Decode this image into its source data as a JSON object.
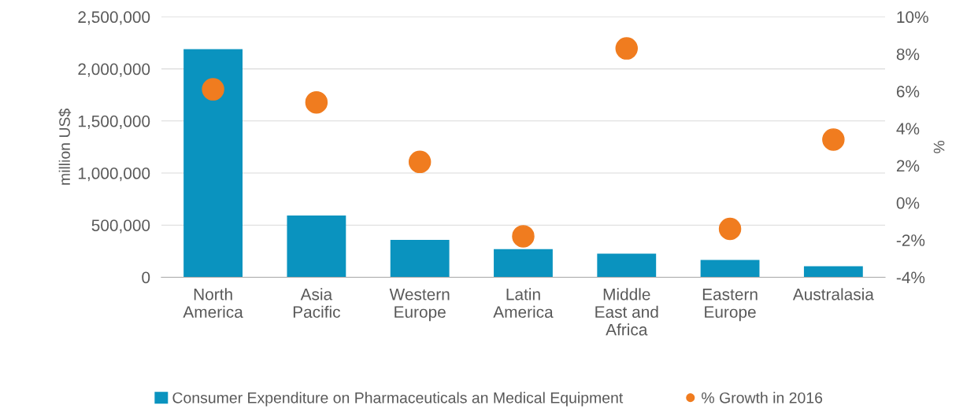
{
  "chart_data": {
    "type": "bar",
    "ylabel": "million US$",
    "y2label": "%",
    "categories": [
      "North\nAmerica",
      "Asia\nPacific",
      "Western\nEurope",
      "Latin\nAmerica",
      "Middle\nEast and\nAfrica",
      "Eastern\nEurope",
      "Australasia"
    ],
    "series": [
      {
        "name": "Consumer Expenditure on Pharmaceuticals an Medical Equipment",
        "color": "#0a93bf",
        "values": [
          2190000,
          593000,
          358000,
          270000,
          227000,
          165000,
          105000
        ]
      },
      {
        "name": "% Growth in 2016",
        "type": "scatter",
        "axis": "y2",
        "color": "#f07c1f",
        "values": [
          6.1,
          5.4,
          2.2,
          -1.8,
          8.3,
          -1.4,
          3.4
        ]
      }
    ],
    "ylim": [
      0,
      2500000
    ],
    "yticks": [
      {
        "value": 0,
        "label": "0"
      },
      {
        "value": 500000,
        "label": "500,000"
      },
      {
        "value": 1000000,
        "label": "1,000,000"
      },
      {
        "value": 1500000,
        "label": "1,500,000"
      },
      {
        "value": 2000000,
        "label": "2,000,000"
      },
      {
        "value": 2500000,
        "label": "2,500,000"
      }
    ],
    "y2lim": [
      -4,
      10
    ],
    "y2ticks": [
      {
        "value": -4,
        "label": "-4%"
      },
      {
        "value": -2,
        "label": "-2%"
      },
      {
        "value": 0,
        "label": "0%"
      },
      {
        "value": 2,
        "label": "2%"
      },
      {
        "value": 4,
        "label": "4%"
      },
      {
        "value": 6,
        "label": "6%"
      },
      {
        "value": 8,
        "label": "8%"
      },
      {
        "value": 10,
        "label": "10%"
      }
    ],
    "grid": "y",
    "legend": "bottom",
    "marker": "circle"
  }
}
